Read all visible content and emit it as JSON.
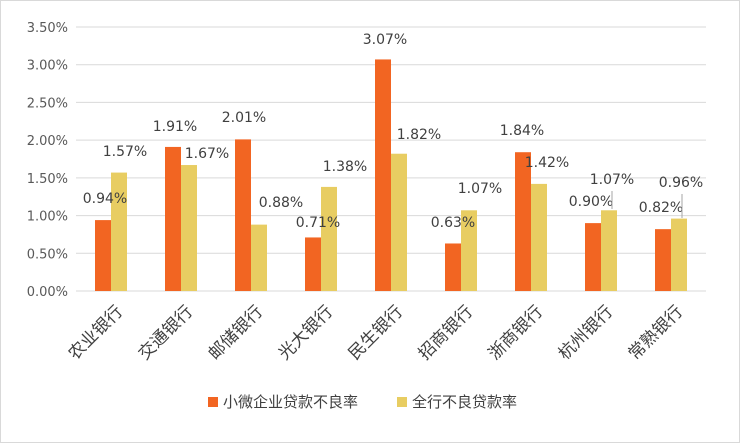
{
  "chart_data": {
    "type": "bar",
    "title": "",
    "xlabel": "",
    "ylabel": "",
    "categories": [
      "农业银行",
      "交通银行",
      "邮储银行",
      "光大银行",
      "民生银行",
      "招商银行",
      "浙商银行",
      "杭州银行",
      "常熟银行"
    ],
    "series": [
      {
        "name": "小微企业贷款不良率",
        "values": [
          0.94,
          1.91,
          2.01,
          0.71,
          3.07,
          0.63,
          1.84,
          0.9,
          0.82
        ],
        "color": "#f26522"
      },
      {
        "name": "全行不良贷款率",
        "values": [
          1.57,
          1.67,
          0.88,
          1.38,
          1.82,
          1.07,
          1.42,
          1.07,
          0.96
        ],
        "color": "#e8cd62"
      }
    ],
    "ylim": [
      0,
      3.5
    ],
    "y_ticks": [
      "0.00%",
      "0.50%",
      "1.00%",
      "1.50%",
      "2.00%",
      "2.50%",
      "3.00%",
      "3.50%"
    ],
    "data_labels": [
      [
        "0.94%",
        "1.91%",
        "2.01%",
        "0.71%",
        "3.07%",
        "0.63%",
        "1.84%",
        "0.90%",
        "0.82%"
      ],
      [
        "1.57%",
        "1.67%",
        "0.88%",
        "1.38%",
        "1.82%",
        "1.07%",
        "1.42%",
        "1.07%",
        "0.96%"
      ]
    ],
    "grid": true,
    "legend_position": "bottom"
  }
}
